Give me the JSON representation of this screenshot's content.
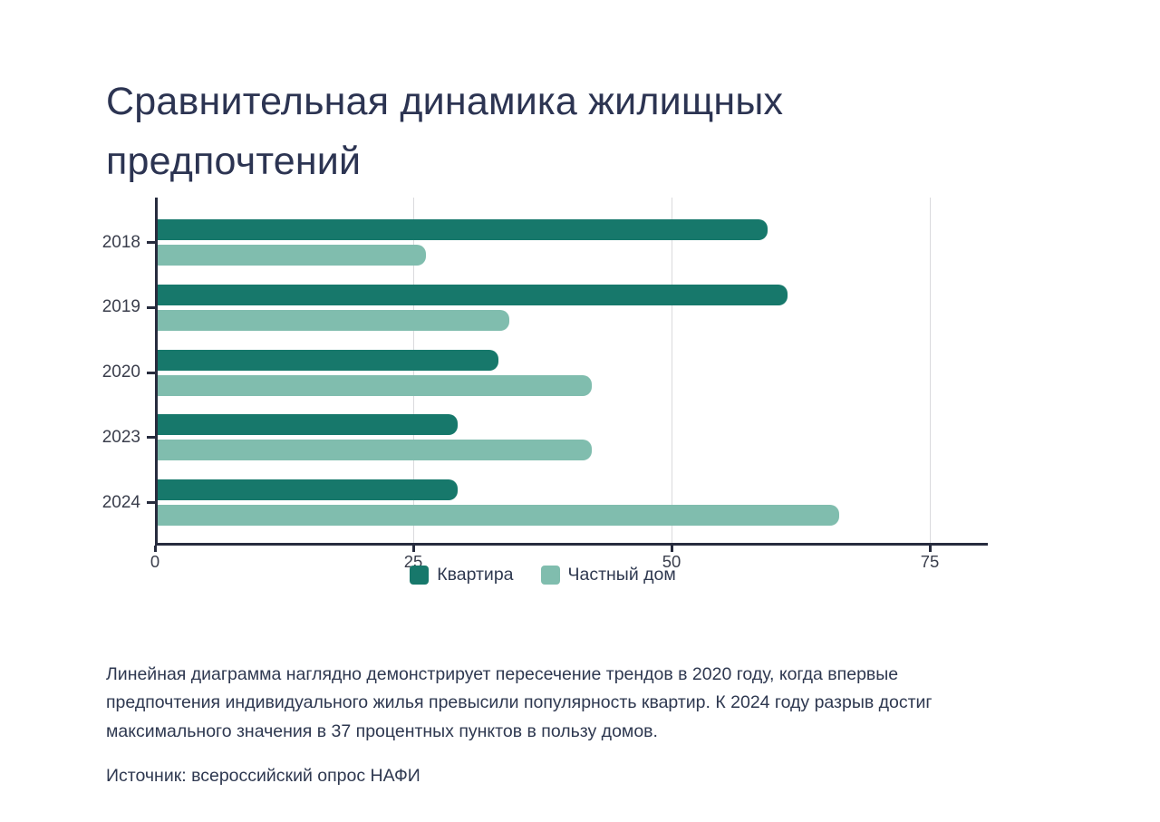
{
  "title": {
    "line1": "Сравнительная динамика жилищных",
    "line2": "предпочтений"
  },
  "chart_data": {
    "type": "bar",
    "orientation": "horizontal",
    "categories": [
      "2018",
      "2019",
      "2020",
      "2023",
      "2024"
    ],
    "series": [
      {
        "name": "Квартира",
        "color": "#17786b",
        "values": [
          59,
          61,
          33,
          29,
          29
        ]
      },
      {
        "name": "Частный дом",
        "color": "#80bdae",
        "values": [
          26,
          34,
          42,
          42,
          66
        ]
      }
    ],
    "x_ticks": [
      0,
      25,
      50,
      75
    ],
    "xlim": [
      0,
      80.6
    ],
    "grid": "vertical-lines-at-ticks",
    "legend_position": "bottom-center",
    "axis_color": "#272c3e",
    "gridline_color": "#dadadd",
    "tick_label_color": "#3a3e4c"
  },
  "description": "Линейная диаграмма наглядно демонстрирует пересечение трендов в 2020 году, когда впервые предпочтения индивидуального жилья превысили популярность квартир. К 2024 году разрыв достиг максимального значения в 37 процентных пунктов в пользу домов.",
  "source": "Источник: всероссийский опрос НАФИ"
}
